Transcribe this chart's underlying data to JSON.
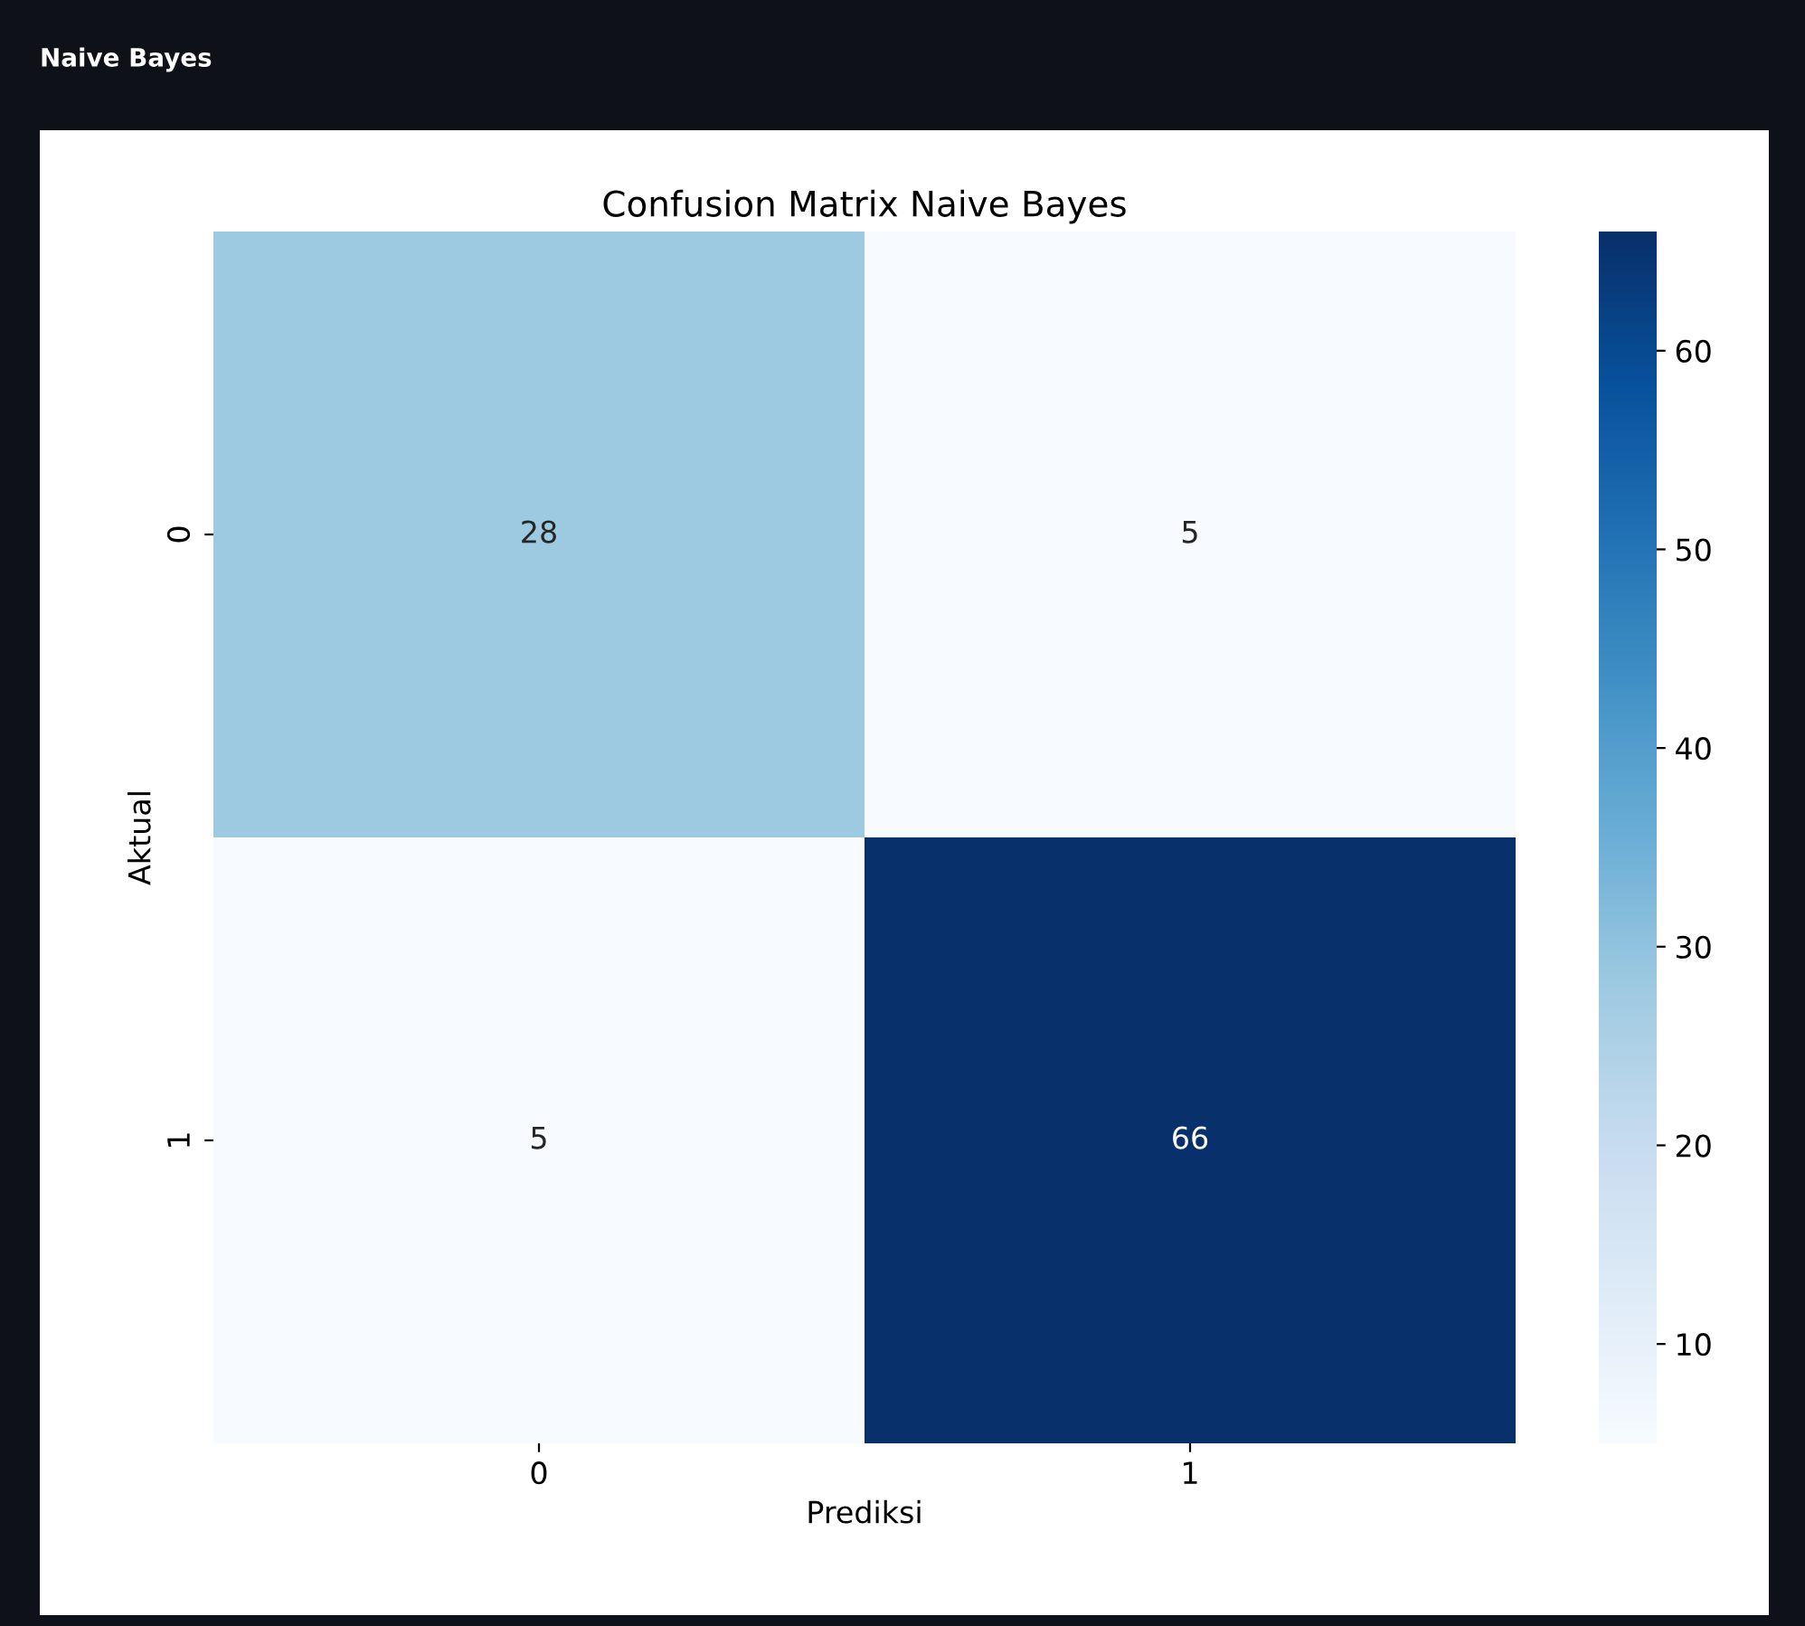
{
  "chart_data": {
    "type": "heatmap",
    "title": "Confusion Matrix Naive Bayes",
    "xlabel": "Prediksi",
    "ylabel": "Aktual",
    "annotations": [
      "Naive Bayes"
    ],
    "categories": [
      "0",
      "1"
    ],
    "y_categories": [
      "0",
      "1"
    ],
    "cells": [
      [
        28,
        5
      ],
      [
        5,
        66
      ]
    ],
    "data_labels": true,
    "clim": [
      5,
      66
    ],
    "cticks": [
      10,
      20,
      30,
      40,
      50,
      60
    ]
  }
}
